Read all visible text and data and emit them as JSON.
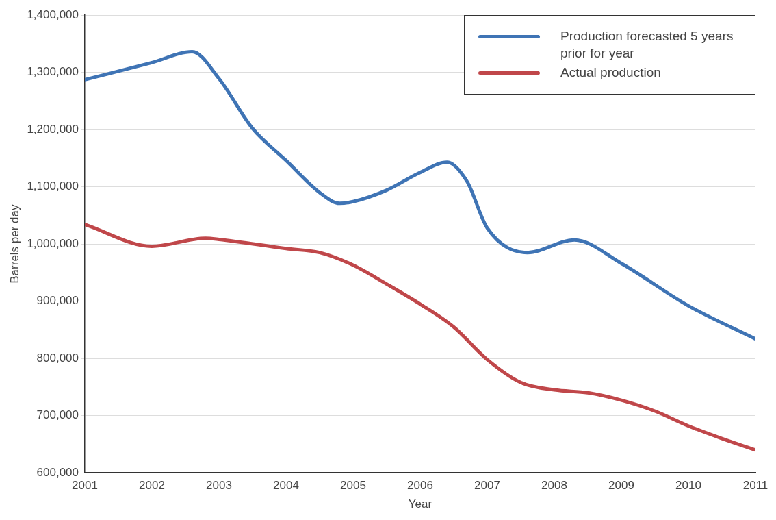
{
  "chart_data": {
    "type": "line",
    "xlabel": "Year",
    "ylabel": "Barrels per day",
    "xlim": [
      2001,
      2011
    ],
    "xticks": [
      2001,
      2002,
      2003,
      2004,
      2005,
      2006,
      2007,
      2008,
      2009,
      2010,
      2011
    ],
    "ylim": [
      600000,
      1400000
    ],
    "yticks": [
      {
        "value": 600000,
        "label": "600,000"
      },
      {
        "value": 700000,
        "label": "700,000"
      },
      {
        "value": 800000,
        "label": "800,000"
      },
      {
        "value": 900000,
        "label": "900,000"
      },
      {
        "value": 1000000,
        "label": "1,000,000"
      },
      {
        "value": 1100000,
        "label": "1,100,000"
      },
      {
        "value": 1200000,
        "label": "1,200,000"
      },
      {
        "value": 1300000,
        "label": "1,300,000"
      },
      {
        "value": 1400000,
        "label": "1,400,000"
      }
    ],
    "grid": "y",
    "legend": "top right",
    "marker": "none",
    "line_style": "solid",
    "series": [
      {
        "name": "Production forecasted 5 years prior for year",
        "color": "#3f74b5",
        "x": [
          2001,
          2002,
          2002.6,
          2003,
          2003.5,
          2004,
          2004.5,
          2004.8,
          2005,
          2005.5,
          2006,
          2006.4,
          2006.7,
          2007,
          2007.6,
          2008.3,
          2009,
          2010,
          2011
        ],
        "values": [
          1287000,
          1317000,
          1336000,
          1289000,
          1202000,
          1146000,
          1090000,
          1071000,
          1074000,
          1094000,
          1125000,
          1143000,
          1109000,
          1028000,
          985000,
          1007000,
          966000,
          892000,
          834000
        ]
      },
      {
        "name": "Actual production",
        "color": "#c0474a",
        "x": [
          2001,
          2002,
          2002.8,
          2003,
          2004,
          2004.5,
          2005,
          2005.5,
          2006,
          2006.5,
          2007,
          2007.5,
          2008,
          2008.5,
          2009,
          2009.5,
          2010,
          2010.5,
          2011
        ],
        "values": [
          1034000,
          996000,
          1010000,
          1008000,
          992000,
          985000,
          963000,
          930000,
          895000,
          855000,
          798000,
          758000,
          745000,
          740000,
          727000,
          708000,
          682000,
          660000,
          640000
        ]
      }
    ]
  }
}
